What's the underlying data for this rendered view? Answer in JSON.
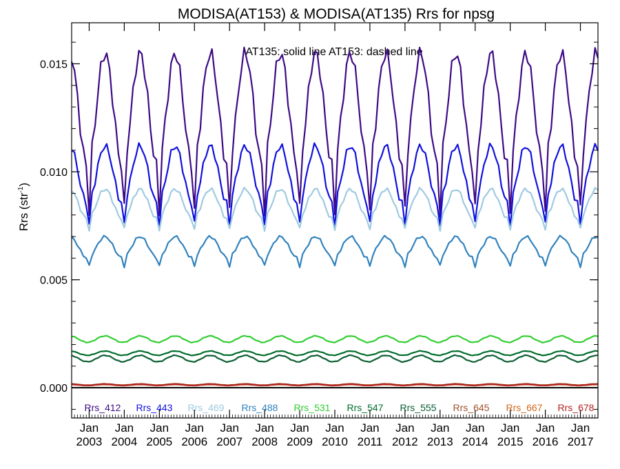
{
  "chart_data": {
    "type": "line",
    "title": "MODISA(AT153) & MODISA(AT135)  Rrs for npsg",
    "annotation": "AT135: solid line   AT153: dashed line",
    "ylabel": "Rrs (str",
    "ylabel_sup": "-1",
    "ylabel_close": ")",
    "ylim": [
      -0.0014,
      0.0169
    ],
    "y_ticks": [
      {
        "value": 0.0,
        "label": "0.000"
      },
      {
        "value": 0.005,
        "label": "0.005"
      },
      {
        "value": 0.01,
        "label": "0.010"
      },
      {
        "value": 0.015,
        "label": "0.015"
      }
    ],
    "xlim": [
      2002.5,
      2017.5
    ],
    "x_ticks": [
      {
        "value": 2003.0,
        "month": "Jan",
        "year": "2003"
      },
      {
        "value": 2004.0,
        "month": "Jan",
        "year": "2004"
      },
      {
        "value": 2005.0,
        "month": "Jan",
        "year": "2005"
      },
      {
        "value": 2006.0,
        "month": "Jan",
        "year": "2006"
      },
      {
        "value": 2007.0,
        "month": "Jan",
        "year": "2007"
      },
      {
        "value": 2008.0,
        "month": "Jan",
        "year": "2008"
      },
      {
        "value": 2009.0,
        "month": "Jan",
        "year": "2009"
      },
      {
        "value": 2010.0,
        "month": "Jan",
        "year": "2010"
      },
      {
        "value": 2011.0,
        "month": "Jan",
        "year": "2011"
      },
      {
        "value": 2012.0,
        "month": "Jan",
        "year": "2012"
      },
      {
        "value": 2013.0,
        "month": "Jan",
        "year": "2013"
      },
      {
        "value": 2014.0,
        "month": "Jan",
        "year": "2014"
      },
      {
        "value": 2015.0,
        "month": "Jan",
        "year": "2015"
      },
      {
        "value": 2016.0,
        "month": "Jan",
        "year": "2016"
      },
      {
        "value": 2017.0,
        "month": "Jan",
        "year": "2017"
      }
    ],
    "zero_line": true,
    "grid": false,
    "legend_position": "bottom",
    "series": [
      {
        "name": "Rrs_412",
        "color": "#3d0a85",
        "x_start": 2002.5,
        "step": 0.0833333,
        "max": 0.0155,
        "min": 0.0102,
        "winter_dip": 0.0021
      },
      {
        "name": "Rrs_443",
        "color": "#1010dd",
        "x_start": 2002.5,
        "step": 0.0833333,
        "max": 0.0112,
        "min": 0.0085,
        "winter_dip": 0.001
      },
      {
        "name": "Rrs_469",
        "color": "#9ecae1",
        "x_start": 2002.5,
        "step": 0.0833333,
        "max": 0.0092,
        "min": 0.0078,
        "winter_dip": 0.0005
      },
      {
        "name": "Rrs_488",
        "color": "#3182bd",
        "x_start": 2002.5,
        "step": 0.0833333,
        "max": 0.007,
        "min": 0.006,
        "winter_dip": 0.0004
      },
      {
        "name": "Rrs_531",
        "color": "#32cd32",
        "x_start": 2002.5,
        "step": 0.0833333,
        "max": 0.0024,
        "min": 0.0021,
        "winter_dip": 0.0
      },
      {
        "name": "Rrs_547",
        "color": "#006d2c",
        "x_start": 2002.5,
        "step": 0.0833333,
        "max": 0.0017,
        "min": 0.0015,
        "winter_dip": 0.0
      },
      {
        "name": "Rrs_555",
        "color": "#0b5e33",
        "x_start": 2002.5,
        "step": 0.0833333,
        "max": 0.0015,
        "min": 0.0012,
        "winter_dip": 0.0
      },
      {
        "name": "Rrs_645",
        "color": "#a0522d",
        "x_start": 2002.5,
        "step": 0.0833333,
        "max": 0.00018,
        "min": 0.00012,
        "winter_dip": 0.0
      },
      {
        "name": "Rrs_667",
        "color": "#d2691e",
        "x_start": 2002.5,
        "step": 0.0833333,
        "max": 0.00015,
        "min": 0.0001,
        "winter_dip": 0.0
      },
      {
        "name": "Rrs_678",
        "color": "#b22222",
        "x_start": 2002.5,
        "step": 0.0833333,
        "max": 0.00016,
        "min": 0.00011,
        "winter_dip": 0.0
      }
    ]
  }
}
